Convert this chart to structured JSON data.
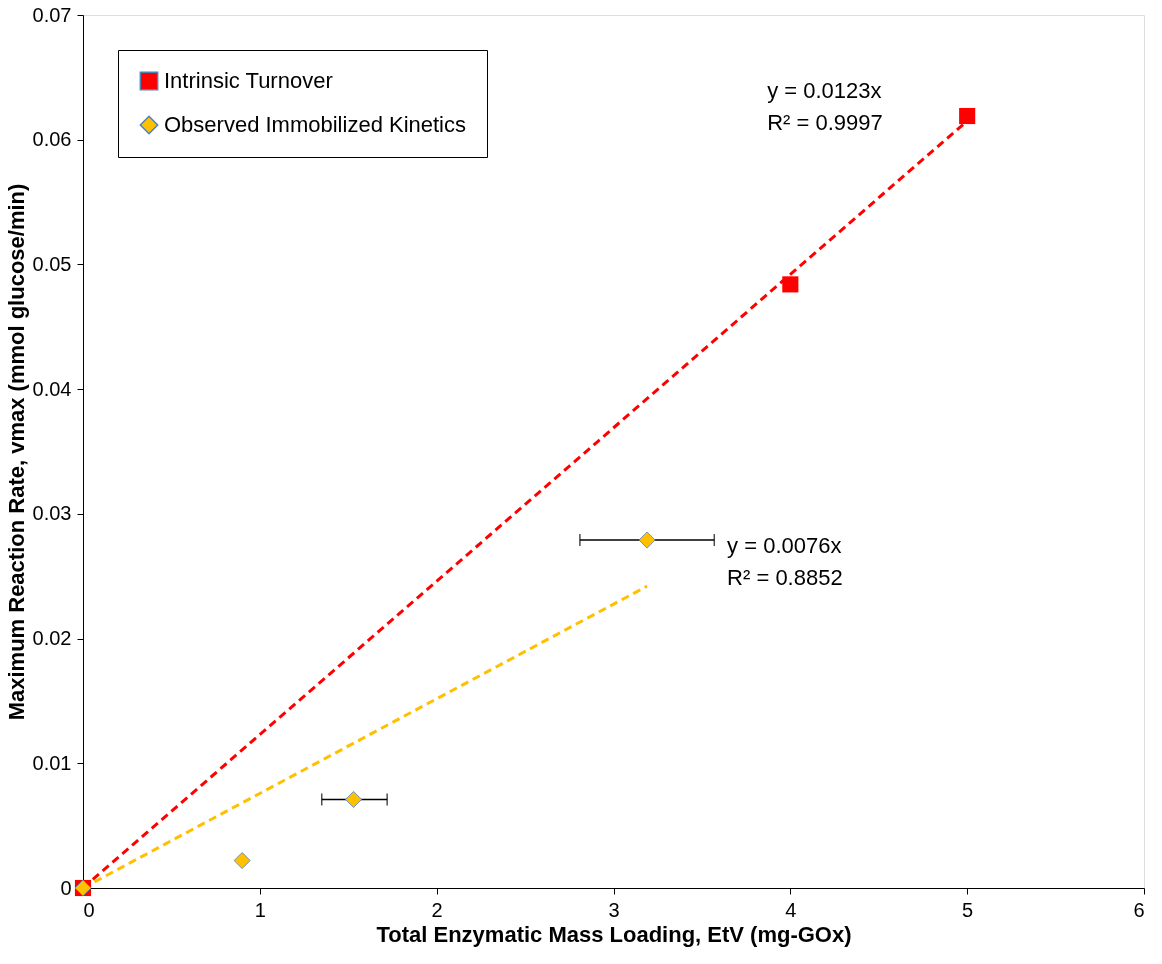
{
  "chart_data": {
    "type": "scatter",
    "xlabel": "Total Enzymatic Mass Loading, EtV (mg-GOx)",
    "ylabel": "Maximum Reaction Rate, vmax (mmol glucose/min)",
    "xlim": [
      0,
      6
    ],
    "xticks": [
      0,
      1,
      2,
      3,
      4,
      5,
      6
    ],
    "ylim": [
      0,
      0.07
    ],
    "yticks": [
      0,
      0.01,
      0.02,
      0.03,
      0.04,
      0.05,
      0.06,
      0.07
    ],
    "grid": false,
    "legend": "top left",
    "series": [
      {
        "type": "line",
        "color": "#ff0000",
        "line_style": "dashed",
        "marker": "none",
        "x": [
          0,
          5
        ],
        "values": [
          0,
          0.0615
        ]
      },
      {
        "type": "line",
        "color": "#ffc000",
        "line_style": "dashed",
        "marker": "none",
        "x": [
          0,
          3.19
        ],
        "values": [
          0,
          0.0242
        ]
      },
      {
        "name": "Intrinsic Turnover",
        "color": "#ff0000",
        "marker": "square",
        "x": [
          0,
          4,
          5
        ],
        "values": [
          0,
          0.0484,
          0.0619
        ]
      },
      {
        "name": "Observed Immobilized Kinetics",
        "color": "#ffc000",
        "marker": "diamond",
        "x": [
          0,
          0.9,
          1.53,
          3.19
        ],
        "values": [
          0,
          0.0022,
          0.0071,
          0.0279
        ],
        "xerrors": [
          null,
          null,
          [
            1.35,
            1.72
          ],
          [
            2.81,
            3.57
          ]
        ]
      }
    ],
    "annotations": [
      "y = 0.0123x",
      "R² = 0.9997",
      "y = 0.0076x",
      "R² = 0.8852"
    ]
  }
}
